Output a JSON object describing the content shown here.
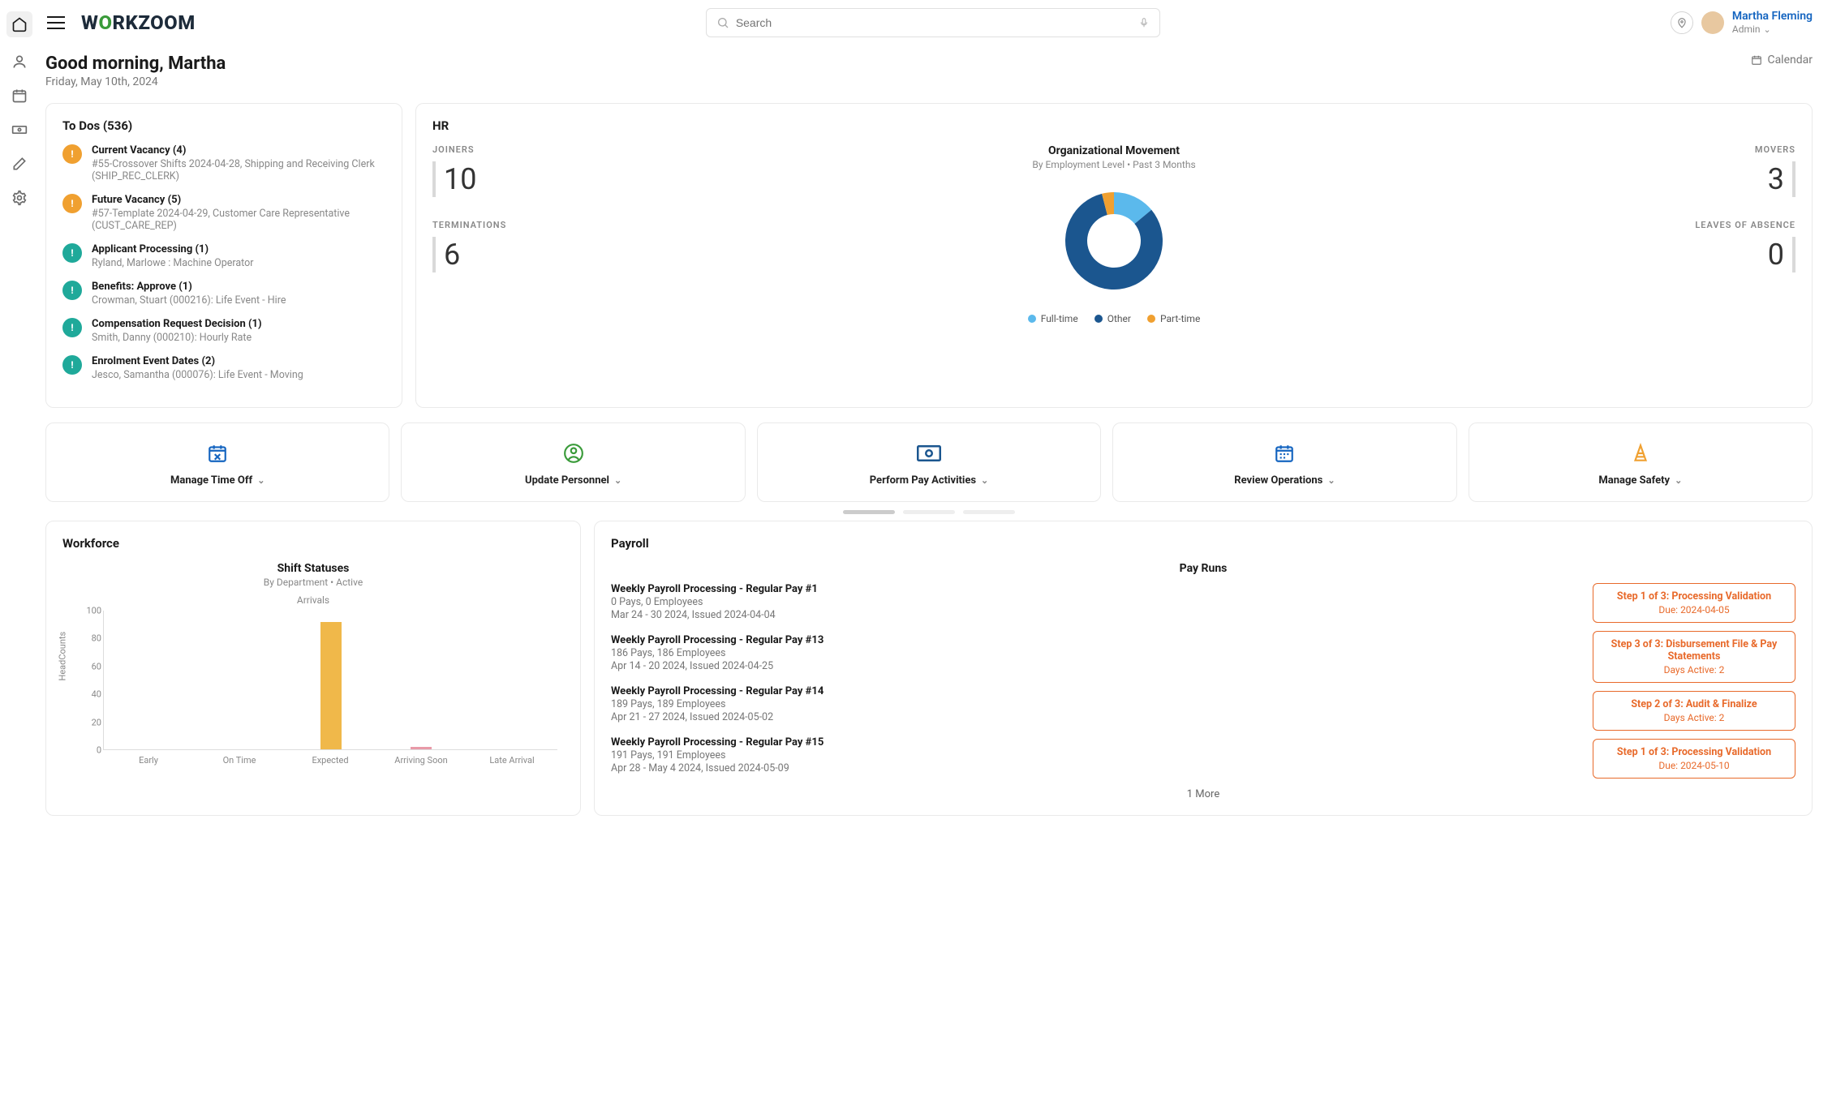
{
  "brand": {
    "name_pre": "W",
    "name_spin": "O",
    "name_post": "RKZOOM"
  },
  "search": {
    "placeholder": "Search"
  },
  "user": {
    "name": "Martha Fleming",
    "role": "Admin"
  },
  "greeting": {
    "title": "Good morning, Martha",
    "date": "Friday, May 10th, 2024"
  },
  "calendar_label": "Calendar",
  "todos": {
    "header": "To Dos (536)",
    "items": [
      {
        "color": "orange",
        "title": "Current Vacancy (4)",
        "sub": "#55-Crossover Shifts 2024-04-28, Shipping and Receiving Clerk (SHIP_REC_CLERK)"
      },
      {
        "color": "orange",
        "title": "Future Vacancy (5)",
        "sub": "#57-Template 2024-04-29, Customer Care Representative (CUST_CARE_REP)"
      },
      {
        "color": "teal",
        "title": "Applicant Processing (1)",
        "sub": "Ryland, Marlowe : Machine Operator"
      },
      {
        "color": "teal",
        "title": "Benefits: Approve (1)",
        "sub": "Crowman, Stuart (000216): Life Event - Hire"
      },
      {
        "color": "teal",
        "title": "Compensation Request Decision (1)",
        "sub": "Smith, Danny (000210): Hourly Rate"
      },
      {
        "color": "teal",
        "title": "Enrolment Event Dates (2)",
        "sub": "Jesco, Samantha (000076): Life Event - Moving"
      }
    ]
  },
  "hr": {
    "header": "HR",
    "chart_title": "Organizational Movement",
    "chart_sub": "By Employment Level   •   Past 3 Months",
    "stats_left": [
      {
        "label": "JOINERS",
        "value": "10"
      },
      {
        "label": "TERMINATIONS",
        "value": "6"
      }
    ],
    "stats_right": [
      {
        "label": "MOVERS",
        "value": "3"
      },
      {
        "label": "LEAVES OF ABSENCE",
        "value": "0"
      }
    ],
    "donut": {
      "slices": [
        {
          "label": "Full-time",
          "color": "#5bb9ec",
          "pct": 14
        },
        {
          "label": "Other",
          "color": "#1b568f",
          "pct": 82
        },
        {
          "label": "Part-time",
          "color": "#f0a030",
          "pct": 4
        }
      ],
      "inner_ratio": 0.55
    }
  },
  "actions": [
    {
      "label": "Manage Time Off",
      "icon": "calendar-x",
      "color": "#1565c0"
    },
    {
      "label": "Update Personnel",
      "icon": "person",
      "color": "#3a9b3a"
    },
    {
      "label": "Perform Pay Activities",
      "icon": "cash",
      "color": "#1b568f"
    },
    {
      "label": "Review Operations",
      "icon": "calendar",
      "color": "#1565c0"
    },
    {
      "label": "Manage Safety",
      "icon": "cone",
      "color": "#f0a030"
    }
  ],
  "workforce": {
    "header": "Workforce",
    "chart_title": "Shift Statuses",
    "chart_sub": "By Department   •   Active",
    "chart_sub2": "Arrivals",
    "y_label": "HeadCounts",
    "y_max": 100,
    "y_step": 20,
    "categories": [
      "Early",
      "On Time",
      "Expected",
      "Arriving Soon",
      "Late Arrival"
    ],
    "bars": [
      {
        "cat": "Expected",
        "value": 92,
        "color": "#f0b84a"
      },
      {
        "cat": "Arriving Soon",
        "value": 2,
        "color": "#e89aa8"
      }
    ],
    "grid_color": "#dddddd"
  },
  "payroll": {
    "header": "Payroll",
    "section_title": "Pay Runs",
    "runs": [
      {
        "title": "Weekly Payroll Processing - Regular Pay #1",
        "line1": "0 Pays, 0 Employees",
        "line2": "Mar 24 - 30 2024, Issued 2024-04-04"
      },
      {
        "title": "Weekly Payroll Processing - Regular Pay #13",
        "line1": "186 Pays, 186 Employees",
        "line2": "Apr 14 - 20 2024, Issued 2024-04-25"
      },
      {
        "title": "Weekly Payroll Processing - Regular Pay #14",
        "line1": "189 Pays, 189 Employees",
        "line2": "Apr 21 - 27 2024, Issued 2024-05-02"
      },
      {
        "title": "Weekly Payroll Processing - Regular Pay #15",
        "line1": "191 Pays, 191 Employees",
        "line2": "Apr 28 - May 4 2024, Issued 2024-05-09"
      }
    ],
    "steps": [
      {
        "title": "Step 1 of 3: Processing Validation",
        "sub": "Due: 2024-04-05"
      },
      {
        "title": "Step 3 of 3: Disbursement File & Pay Statements",
        "sub": "Days Active: 2"
      },
      {
        "title": "Step 2 of 3: Audit & Finalize",
        "sub": "Days Active: 2"
      },
      {
        "title": "Step 1 of 3: Processing Validation",
        "sub": "Due: 2024-05-10"
      }
    ],
    "more": "1 More"
  }
}
